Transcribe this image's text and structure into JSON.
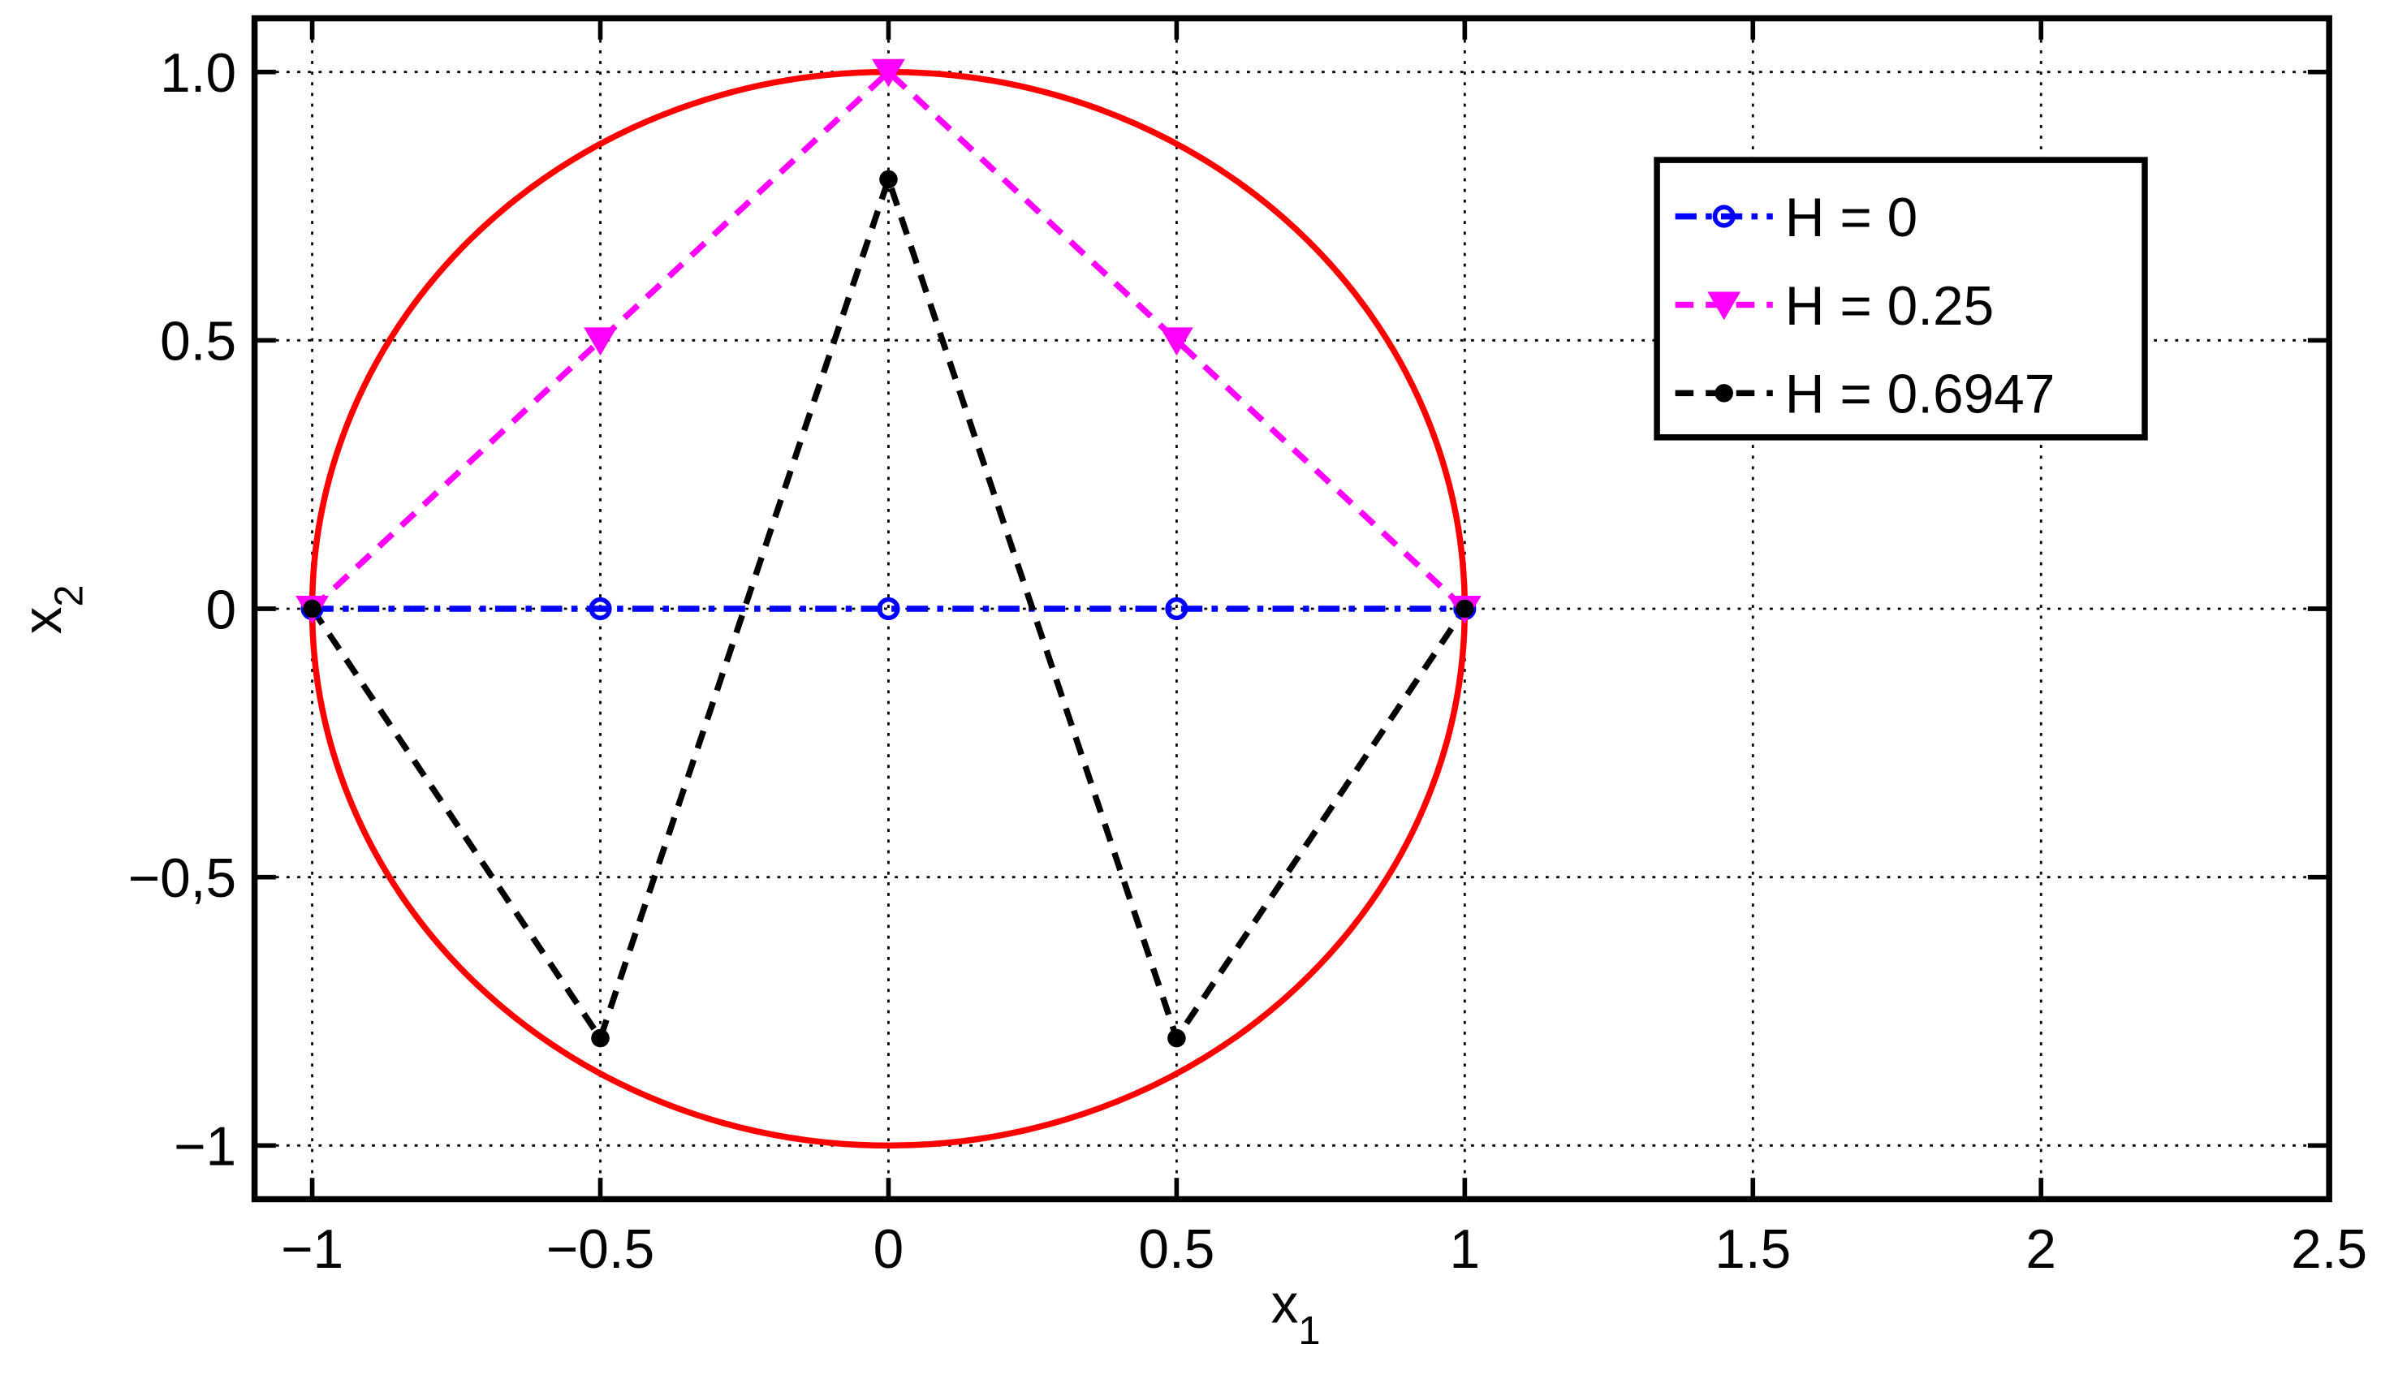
{
  "chart_data": {
    "type": "line",
    "x_label": {
      "main": "x",
      "sub": "1"
    },
    "y_label": {
      "main": "x",
      "sub": "2"
    },
    "xlim": [
      -1.1,
      2.5
    ],
    "ylim": [
      -1.1,
      1.1
    ],
    "xticks": [
      {
        "value": -1,
        "label": "−1"
      },
      {
        "value": -0.5,
        "label": "−0.5"
      },
      0,
      0.5,
      1,
      1.5,
      2,
      2.5
    ],
    "yticks": [
      {
        "value": -1,
        "label": "−1"
      },
      {
        "value": -0.5,
        "label": "−0,5"
      },
      0,
      0.5,
      {
        "value": 1,
        "label": "1.0"
      }
    ],
    "grid": true,
    "legend": "northeast",
    "circle": {
      "cx": 0,
      "cy": 0,
      "r": 1,
      "color": "#ff0000"
    },
    "series": [
      {
        "name": "H = 0",
        "color": "#0000ff",
        "marker": "circle-open",
        "dash": "dashdot",
        "x": [
          -1,
          -0.5,
          0,
          0.5,
          1
        ],
        "values": [
          0,
          0,
          0,
          0,
          0
        ]
      },
      {
        "name": "H = 0.25",
        "color": "#ff00ff",
        "marker": "triangle-down",
        "dash": "dashed",
        "x": [
          -1,
          -0.5,
          0,
          0.5,
          1
        ],
        "values": [
          0,
          0.5,
          1,
          0.5,
          0
        ]
      },
      {
        "name": "H = 0.6947",
        "color": "#000000",
        "marker": "dot",
        "dash": "dashed",
        "x": [
          -1,
          -0.5,
          0,
          0.5,
          1
        ],
        "values": [
          0,
          -0.8,
          0.8,
          -0.8,
          0
        ]
      }
    ]
  }
}
